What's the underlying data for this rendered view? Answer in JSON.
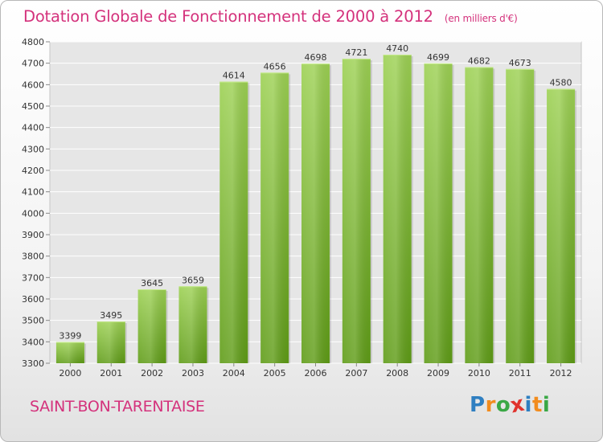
{
  "title": "Dotation Globale de Fonctionnement de 2000 à 2012",
  "unit": "(en milliers d'€)",
  "place": "SAINT-BON-TARENTAISE",
  "logo": {
    "letters": [
      "P",
      "r",
      "o",
      "x",
      "i",
      "t",
      "i"
    ],
    "colors": [
      "#2f7fc1",
      "#f28c1e",
      "#3aa845",
      "#e0322d",
      "#2f7fc1",
      "#f28c1e",
      "#3aa845"
    ]
  },
  "colors": {
    "bar_top": "#9dd154",
    "bar_bottom": "#5f9c17",
    "text_accent": "#d4327c"
  },
  "chart_data": {
    "type": "bar",
    "categories": [
      "2000",
      "2001",
      "2002",
      "2003",
      "2004",
      "2005",
      "2006",
      "2007",
      "2008",
      "2009",
      "2010",
      "2011",
      "2012"
    ],
    "values": [
      3399,
      3495,
      3645,
      3659,
      4614,
      4656,
      4698,
      4721,
      4740,
      4699,
      4682,
      4673,
      4580
    ],
    "data_labels": [
      "3399",
      "3495",
      "3645",
      "3659",
      "4614",
      "4656",
      "4698",
      "4721",
      "4740",
      "4699",
      "4682",
      "4673",
      "4580"
    ],
    "y_ticks": [
      "3300",
      "3400",
      "3500",
      "3600",
      "3700",
      "3800",
      "3900",
      "4000",
      "4100",
      "4200",
      "4300",
      "4400",
      "4500",
      "4600",
      "4700",
      "4800"
    ],
    "ylim": [
      3300,
      4800
    ],
    "grid": true,
    "legend": "none"
  }
}
